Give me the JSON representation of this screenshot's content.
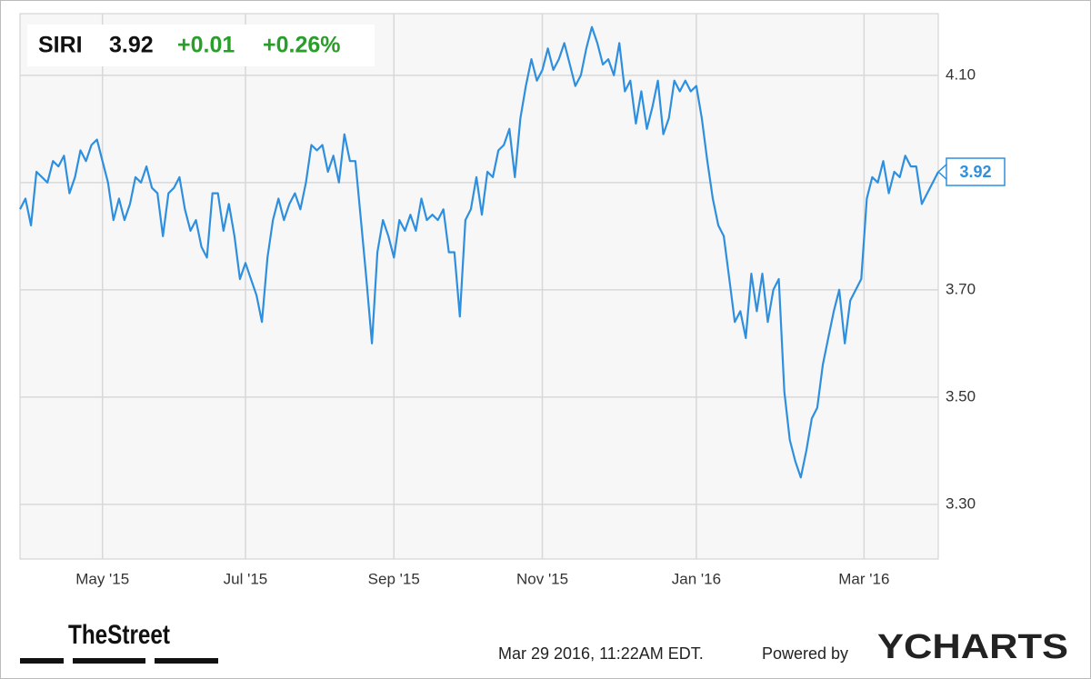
{
  "chart_data": {
    "type": "line",
    "header": {
      "ticker": "SIRI",
      "price": "3.92",
      "change": "+0.01",
      "change_pct": "+0.26%"
    },
    "series": [
      {
        "name": "SIRI",
        "color": "#2f8fdf",
        "values": [
          3.85,
          3.87,
          3.82,
          3.92,
          3.91,
          3.9,
          3.94,
          3.93,
          3.95,
          3.88,
          3.91,
          3.96,
          3.94,
          3.97,
          3.98,
          3.94,
          3.9,
          3.83,
          3.87,
          3.83,
          3.86,
          3.91,
          3.9,
          3.93,
          3.89,
          3.88,
          3.8,
          3.88,
          3.89,
          3.91,
          3.85,
          3.81,
          3.83,
          3.78,
          3.76,
          3.88,
          3.88,
          3.81,
          3.86,
          3.8,
          3.72,
          3.75,
          3.72,
          3.69,
          3.64,
          3.76,
          3.83,
          3.87,
          3.83,
          3.86,
          3.88,
          3.85,
          3.9,
          3.97,
          3.96,
          3.97,
          3.92,
          3.95,
          3.9,
          3.99,
          3.94,
          3.94,
          3.83,
          3.72,
          3.6,
          3.77,
          3.83,
          3.8,
          3.76,
          3.83,
          3.81,
          3.84,
          3.81,
          3.87,
          3.83,
          3.84,
          3.83,
          3.85,
          3.77,
          3.77,
          3.65,
          3.83,
          3.85,
          3.91,
          3.84,
          3.92,
          3.91,
          3.96,
          3.97,
          4.0,
          3.91,
          4.02,
          4.08,
          4.13,
          4.09,
          4.11,
          4.15,
          4.11,
          4.13,
          4.16,
          4.12,
          4.08,
          4.1,
          4.15,
          4.19,
          4.16,
          4.12,
          4.13,
          4.1,
          4.16,
          4.07,
          4.09,
          4.01,
          4.07,
          4.0,
          4.04,
          4.09,
          3.99,
          4.02,
          4.09,
          4.07,
          4.09,
          4.07,
          4.08,
          4.02,
          3.94,
          3.87,
          3.82,
          3.8,
          3.72,
          3.64,
          3.66,
          3.61,
          3.73,
          3.66,
          3.73,
          3.64,
          3.7,
          3.72,
          3.51,
          3.42,
          3.38,
          3.35,
          3.4,
          3.46,
          3.48,
          3.56,
          3.61,
          3.66,
          3.7,
          3.6,
          3.68,
          3.7,
          3.72,
          3.87,
          3.91,
          3.9,
          3.94,
          3.88,
          3.92,
          3.91,
          3.95,
          3.93,
          3.93,
          3.86,
          3.88,
          3.9,
          3.92
        ]
      }
    ],
    "xlim": [
      0,
      167
    ],
    "xticks": [
      {
        "value": 15,
        "label": "May '15"
      },
      {
        "value": 41,
        "label": "Jul '15"
      },
      {
        "value": 68,
        "label": "Sep '15"
      },
      {
        "value": 95,
        "label": "Nov '15"
      },
      {
        "value": 123,
        "label": "Jan '16"
      },
      {
        "value": 153.5,
        "label": "Mar '16"
      }
    ],
    "ylim": [
      3.198,
      4.215
    ],
    "yticks": [
      {
        "value": 3.3,
        "label": "3.30"
      },
      {
        "value": 3.5,
        "label": "3.50"
      },
      {
        "value": 3.7,
        "label": "3.70"
      },
      {
        "value": 4.1,
        "label": "4.10"
      }
    ],
    "ygrid": [
      3.3,
      3.5,
      3.7,
      3.9,
      4.1
    ],
    "grid": true,
    "footer": {
      "timestamp": "Mar 29 2016, 11:22AM EDT.",
      "powered": "Powered by",
      "brand": "YCHARTS",
      "partner": "TheStreet"
    }
  }
}
